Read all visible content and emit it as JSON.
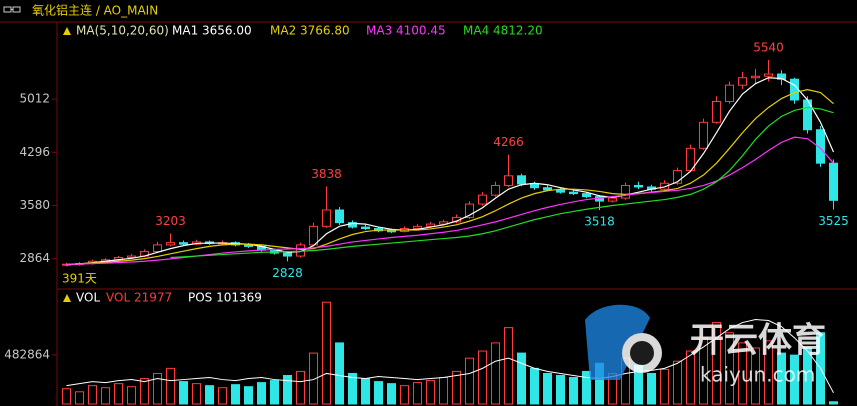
{
  "header": {
    "title": "氧化铝主连 / AO_MAIN"
  },
  "chart_data": [
    {
      "type": "candlestick",
      "legend_title": "MA(5,10,20,60)",
      "period_label": "391天",
      "ylim": [
        2470,
        6050
      ],
      "yticks": [
        2864,
        3580,
        4296,
        5012
      ],
      "up_color": "#ff3b3b",
      "down_color": "#2ee6e6",
      "open": [
        2780,
        2790,
        2800,
        2830,
        2850,
        2880,
        2900,
        2960,
        3050,
        3080,
        3060,
        3090,
        3070,
        3080,
        3050,
        3030,
        2980,
        2940,
        2900,
        3050,
        3300,
        3520,
        3350,
        3290,
        3270,
        3240,
        3230,
        3270,
        3300,
        3330,
        3360,
        3420,
        3600,
        3720,
        3850,
        3980,
        3870,
        3820,
        3790,
        3760,
        3740,
        3700,
        3640,
        3680,
        3850,
        3830,
        3800,
        3880,
        4050,
        4350,
        4700,
        4980,
        5200,
        5300,
        5320,
        5350,
        5280,
        5000,
        4600,
        4150
      ],
      "high": [
        2810,
        2820,
        2850,
        2870,
        2900,
        2930,
        2990,
        3090,
        3203,
        3110,
        3120,
        3110,
        3110,
        3100,
        3075,
        3050,
        3000,
        2960,
        3080,
        3350,
        3838,
        3560,
        3380,
        3320,
        3290,
        3270,
        3300,
        3330,
        3360,
        3390,
        3460,
        3640,
        3760,
        3900,
        4266,
        4010,
        3900,
        3850,
        3820,
        3790,
        3760,
        3720,
        3710,
        3890,
        3900,
        3860,
        3920,
        4090,
        4400,
        4750,
        5050,
        5250,
        5380,
        5420,
        5540,
        5400,
        5300,
        5050,
        4650,
        4200
      ],
      "low": [
        2760,
        2770,
        2785,
        2810,
        2835,
        2860,
        2885,
        2940,
        3030,
        3040,
        3045,
        3050,
        3055,
        3030,
        3010,
        2960,
        2920,
        2828,
        2880,
        3030,
        3280,
        3320,
        3270,
        3250,
        3220,
        3210,
        3220,
        3250,
        3280,
        3310,
        3340,
        3400,
        3580,
        3700,
        3830,
        3840,
        3790,
        3770,
        3740,
        3720,
        3680,
        3518,
        3620,
        3660,
        3800,
        3770,
        3780,
        3860,
        4030,
        4330,
        4680,
        4950,
        5150,
        5220,
        5250,
        5200,
        4950,
        4550,
        4100,
        3525
      ],
      "close": [
        2790,
        2800,
        2830,
        2850,
        2880,
        2900,
        2960,
        3050,
        3080,
        3060,
        3090,
        3070,
        3080,
        3050,
        3030,
        2980,
        2940,
        2900,
        3050,
        3300,
        3520,
        3350,
        3290,
        3270,
        3240,
        3230,
        3270,
        3300,
        3330,
        3360,
        3420,
        3600,
        3720,
        3850,
        3980,
        3870,
        3820,
        3790,
        3760,
        3740,
        3700,
        3640,
        3680,
        3850,
        3830,
        3800,
        3880,
        4050,
        4350,
        4700,
        4980,
        5200,
        5300,
        5320,
        5350,
        5280,
        5000,
        4600,
        4150,
        3650
      ],
      "high_labels": [
        3203,
        3838,
        4266,
        5540
      ],
      "low_labels": [
        2828,
        3518,
        3525
      ],
      "series": [
        {
          "name": "MA1 3656.00",
          "color": "#ffffff",
          "values": [
            2785,
            2795,
            2810,
            2830,
            2850,
            2870,
            2900,
            2950,
            3000,
            3040,
            3070,
            3075,
            3075,
            3070,
            3060,
            3030,
            2990,
            2950,
            2960,
            3040,
            3200,
            3300,
            3340,
            3330,
            3290,
            3260,
            3250,
            3260,
            3290,
            3320,
            3370,
            3450,
            3550,
            3680,
            3800,
            3860,
            3880,
            3860,
            3820,
            3790,
            3760,
            3710,
            3690,
            3720,
            3760,
            3800,
            3830,
            3900,
            4040,
            4280,
            4560,
            4850,
            5080,
            5220,
            5300,
            5290,
            5200,
            5000,
            4700,
            4300
          ]
        },
        {
          "name": "MA2 3766.80",
          "color": "#e6d000",
          "values": [
            2790,
            2795,
            2805,
            2815,
            2830,
            2845,
            2865,
            2895,
            2930,
            2965,
            3000,
            3030,
            3050,
            3060,
            3060,
            3050,
            3030,
            3010,
            2990,
            3000,
            3060,
            3130,
            3190,
            3230,
            3250,
            3250,
            3250,
            3250,
            3265,
            3290,
            3320,
            3370,
            3430,
            3510,
            3600,
            3680,
            3740,
            3780,
            3800,
            3800,
            3790,
            3770,
            3740,
            3730,
            3740,
            3760,
            3780,
            3810,
            3880,
            3990,
            4150,
            4350,
            4560,
            4750,
            4900,
            5020,
            5100,
            5140,
            5100,
            4950
          ]
        },
        {
          "name": "MA3 4100.45",
          "color": "#ff33ff",
          "values": [
            2790,
            2792,
            2798,
            2805,
            2812,
            2820,
            2830,
            2845,
            2862,
            2880,
            2900,
            2920,
            2940,
            2955,
            2970,
            2980,
            2990,
            2995,
            3000,
            3010,
            3030,
            3060,
            3090,
            3110,
            3130,
            3150,
            3165,
            3180,
            3200,
            3220,
            3245,
            3280,
            3320,
            3360,
            3410,
            3460,
            3510,
            3555,
            3595,
            3630,
            3660,
            3680,
            3700,
            3720,
            3740,
            3755,
            3770,
            3785,
            3810,
            3850,
            3910,
            3990,
            4090,
            4200,
            4320,
            4430,
            4500,
            4480,
            4350,
            4150
          ]
        },
        {
          "name": "MA4 4812.20",
          "color": "#22dd22",
          "values": [
            null,
            null,
            null,
            null,
            null,
            null,
            null,
            null,
            2880,
            2890,
            2900,
            2910,
            2920,
            2930,
            2940,
            2950,
            2955,
            2960,
            2965,
            2975,
            2990,
            3010,
            3030,
            3045,
            3060,
            3075,
            3090,
            3105,
            3120,
            3135,
            3150,
            3170,
            3200,
            3240,
            3290,
            3340,
            3390,
            3430,
            3470,
            3500,
            3530,
            3555,
            3580,
            3600,
            3620,
            3640,
            3660,
            3690,
            3730,
            3800,
            3900,
            4050,
            4250,
            4470,
            4650,
            4780,
            4860,
            4900,
            4880,
            4830
          ]
        }
      ]
    },
    {
      "type": "bar",
      "legend_title": "VOL",
      "ylim": [
        0,
        1100000
      ],
      "yticks": [
        482864
      ],
      "series": [
        {
          "name": "VOL 21977",
          "color": "#ff3b3b",
          "values": [
            150000,
            120000,
            180000,
            160000,
            200000,
            170000,
            250000,
            300000,
            350000,
            220000,
            200000,
            180000,
            160000,
            190000,
            170000,
            210000,
            230000,
            280000,
            320000,
            500000,
            1000000,
            600000,
            300000,
            250000,
            220000,
            200000,
            180000,
            210000,
            230000,
            260000,
            320000,
            450000,
            520000,
            600000,
            750000,
            500000,
            350000,
            300000,
            280000,
            260000,
            320000,
            400000,
            300000,
            450000,
            380000,
            300000,
            340000,
            420000,
            520000,
            650000,
            800000,
            700000,
            600000,
            550000,
            620000,
            500000,
            480000,
            550000,
            700000,
            22000
          ]
        },
        {
          "name": "POS 101369",
          "color": "#ffffff",
          "values": [
            180000,
            200000,
            220000,
            210000,
            230000,
            240000,
            220000,
            250000,
            230000,
            240000,
            250000,
            260000,
            240000,
            230000,
            250000,
            260000,
            240000,
            230000,
            220000,
            240000,
            300000,
            280000,
            260000,
            250000,
            270000,
            260000,
            250000,
            240000,
            250000,
            260000,
            280000,
            300000,
            350000,
            420000,
            450000,
            400000,
            350000,
            320000,
            300000,
            280000,
            260000,
            250000,
            270000,
            300000,
            320000,
            330000,
            350000,
            400000,
            480000,
            560000,
            650000,
            740000,
            800000,
            830000,
            820000,
            760000,
            650000,
            520000,
            350000,
            110000
          ]
        }
      ]
    }
  ],
  "watermark": {
    "name": "开云体育",
    "url": "kaiyun.com"
  }
}
